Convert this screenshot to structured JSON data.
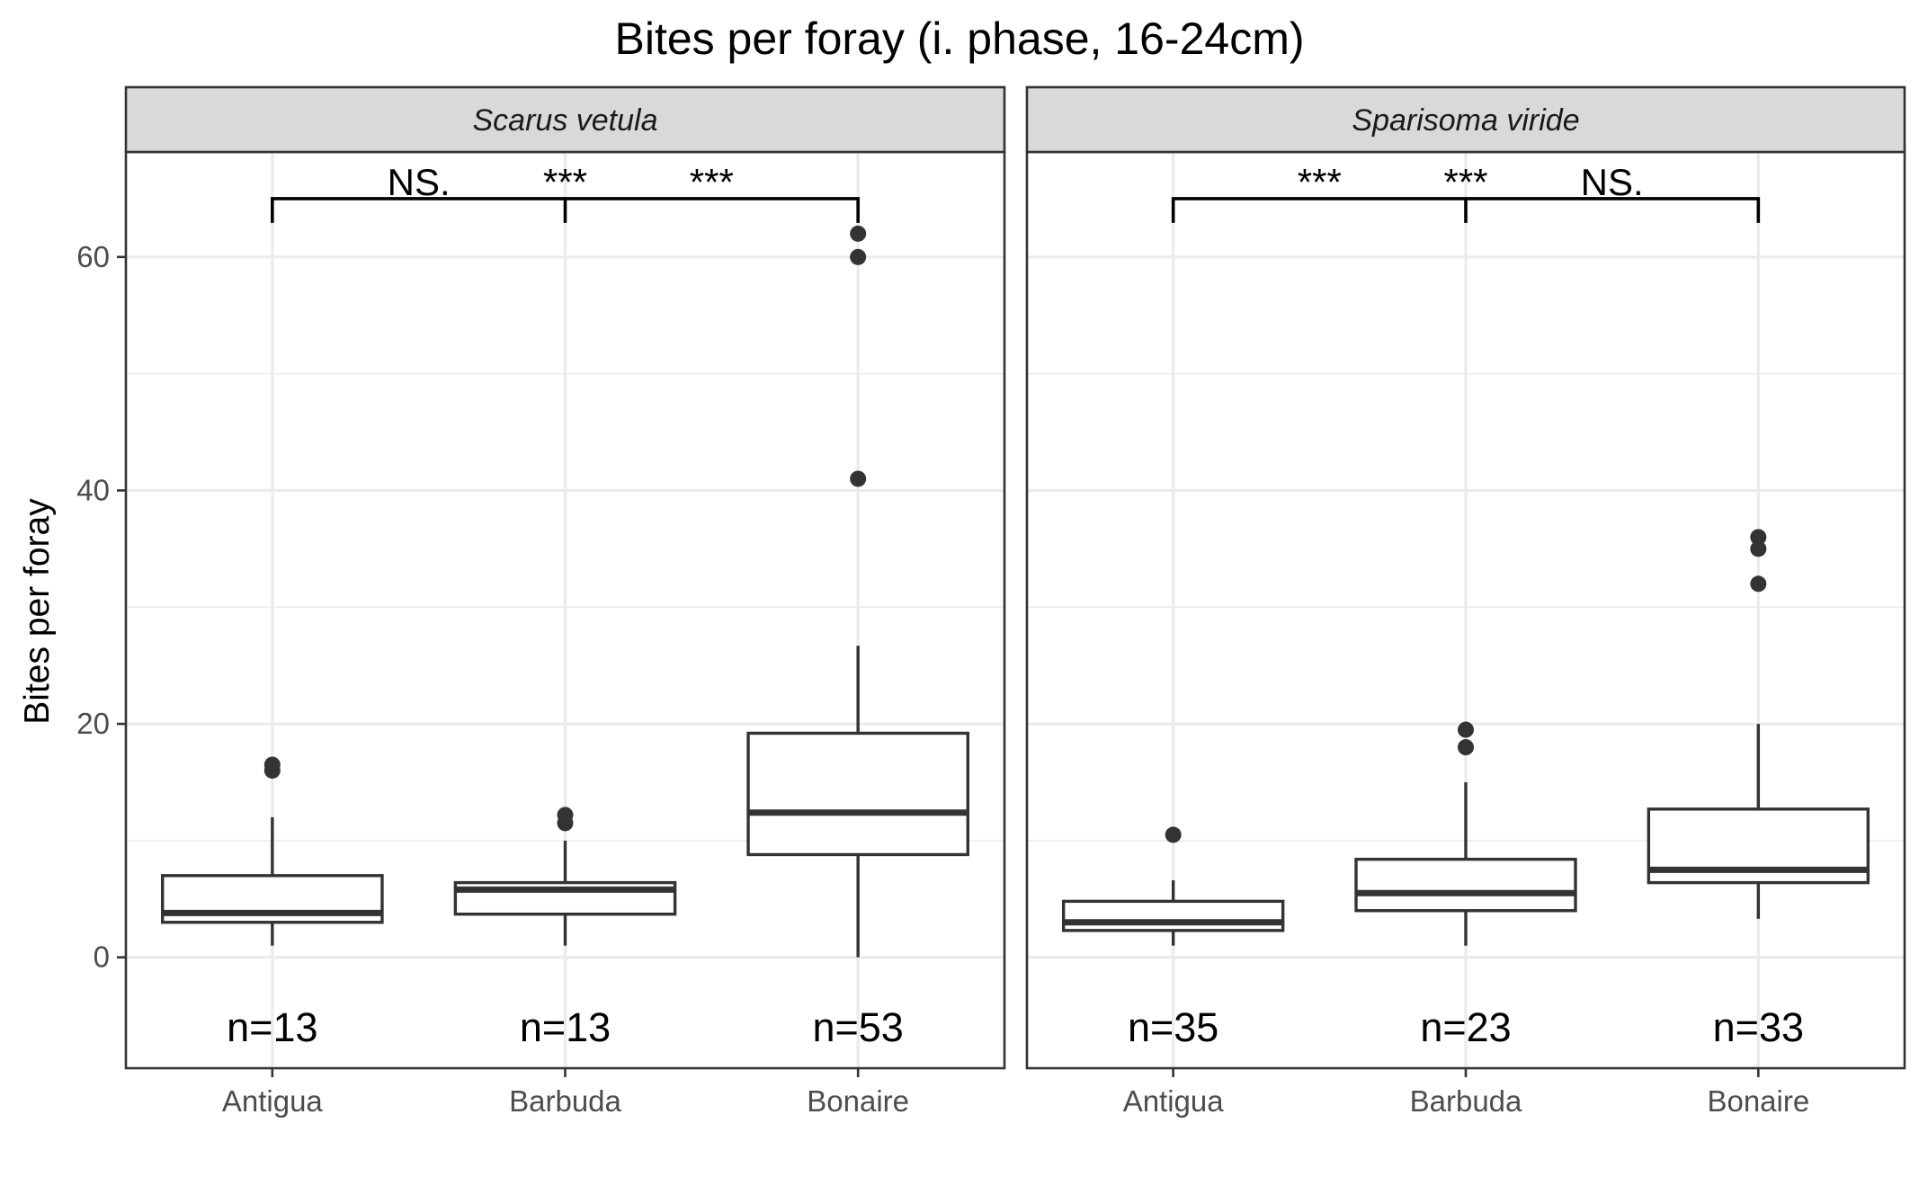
{
  "chart_data": {
    "type": "boxplot",
    "title": "Bites per foray (i. phase, 16-24cm)",
    "ylabel": "Bites per foray",
    "xlabel": "",
    "ylim": [
      -9.5,
      69
    ],
    "y_ticks": [
      0,
      20,
      40,
      60
    ],
    "y_tick_labels": [
      "0",
      "20",
      "40",
      "60"
    ],
    "categories": [
      "Antigua",
      "Barbuda",
      "Bonaire"
    ],
    "grid": true,
    "panels": [
      {
        "strip": "Scarus vetula",
        "groups": [
          {
            "category": "Antigua",
            "n_label": "n=13",
            "min": 1,
            "q1": 3,
            "median": 3.8,
            "q3": 7,
            "max": 12,
            "outliers": [
              16,
              16.5
            ]
          },
          {
            "category": "Barbuda",
            "n_label": "n=13",
            "min": 1,
            "q1": 3.7,
            "median": 5.8,
            "q3": 6.4,
            "max": 10,
            "outliers": [
              11.5,
              12.2
            ]
          },
          {
            "category": "Bonaire",
            "n_label": "n=53",
            "min": 0,
            "q1": 8.8,
            "median": 12.4,
            "q3": 19.2,
            "max": 26.7,
            "outliers": [
              41,
              60,
              62
            ]
          }
        ],
        "comparisons": [
          "NS.",
          "***",
          "***"
        ]
      },
      {
        "strip": "Sparisoma viride",
        "groups": [
          {
            "category": "Antigua",
            "n_label": "n=35",
            "min": 1,
            "q1": 2.3,
            "median": 3,
            "q3": 4.8,
            "max": 6.6,
            "outliers": [
              10.5
            ]
          },
          {
            "category": "Barbuda",
            "n_label": "n=23",
            "min": 1,
            "q1": 4,
            "median": 5.5,
            "q3": 8.4,
            "max": 15,
            "outliers": [
              18,
              19.5
            ]
          },
          {
            "category": "Bonaire",
            "n_label": "n=33",
            "min": 3.3,
            "q1": 6.4,
            "median": 7.5,
            "q3": 12.7,
            "max": 20,
            "outliers": [
              32,
              35,
              36
            ]
          }
        ],
        "comparisons": [
          "***",
          "***",
          "NS."
        ]
      }
    ],
    "bracket_y": 65
  }
}
